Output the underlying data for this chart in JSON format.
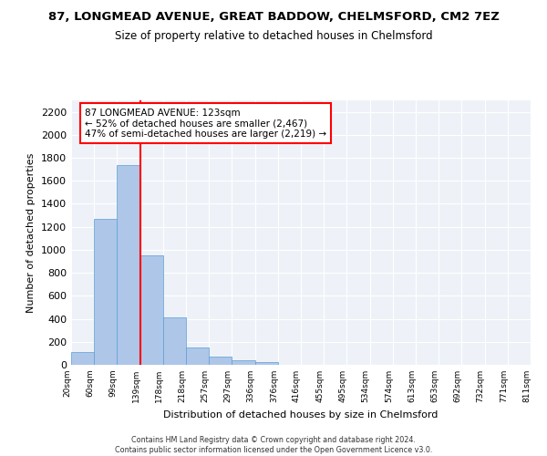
{
  "title": "87, LONGMEAD AVENUE, GREAT BADDOW, CHELMSFORD, CM2 7EZ",
  "subtitle": "Size of property relative to detached houses in Chelmsford",
  "xlabel": "Distribution of detached houses by size in Chelmsford",
  "ylabel": "Number of detached properties",
  "bar_color": "#aec6e8",
  "bar_edge_color": "#5a9fd4",
  "vline_x": 2.5,
  "vline_color": "red",
  "annotation_text": "87 LONGMEAD AVENUE: 123sqm\n← 52% of detached houses are smaller (2,467)\n47% of semi-detached houses are larger (2,219) →",
  "annotation_box_color": "white",
  "annotation_box_edge_color": "red",
  "bins": [
    "20sqm",
    "60sqm",
    "99sqm",
    "139sqm",
    "178sqm",
    "218sqm",
    "257sqm",
    "297sqm",
    "336sqm",
    "376sqm",
    "416sqm",
    "455sqm",
    "495sqm",
    "534sqm",
    "574sqm",
    "613sqm",
    "653sqm",
    "692sqm",
    "732sqm",
    "771sqm",
    "811sqm"
  ],
  "values": [
    110,
    1270,
    1735,
    950,
    415,
    150,
    75,
    42,
    22,
    0,
    0,
    0,
    0,
    0,
    0,
    0,
    0,
    0,
    0,
    0
  ],
  "ylim": [
    0,
    2300
  ],
  "yticks": [
    0,
    200,
    400,
    600,
    800,
    1000,
    1200,
    1400,
    1600,
    1800,
    2000,
    2200
  ],
  "footer_line1": "Contains HM Land Registry data © Crown copyright and database right 2024.",
  "footer_line2": "Contains public sector information licensed under the Open Government Licence v3.0.",
  "bg_color": "#eef2f8",
  "grid_color": "#ffffff",
  "font_family": "DejaVu Sans"
}
